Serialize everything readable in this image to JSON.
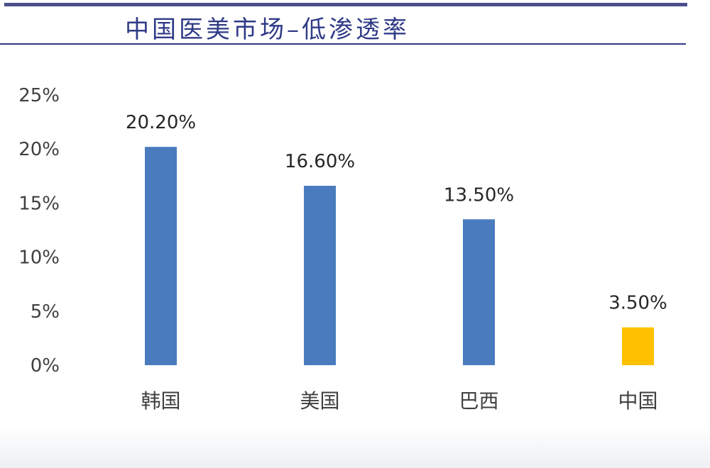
{
  "header": {
    "title": "中国医美市场–低渗透率"
  },
  "colors": {
    "bar_default": "#4a7bbf",
    "bar_highlight": "#ffc000",
    "title_text": "#2f3a86",
    "rule": "#4a4f8c"
  },
  "chart_data": {
    "type": "bar",
    "title": "",
    "xlabel": "",
    "ylabel": "",
    "categories": [
      "韩国",
      "美国",
      "巴西",
      "中国"
    ],
    "values": [
      20.2,
      16.6,
      13.5,
      3.5
    ],
    "data_labels": [
      "20.20%",
      "16.60%",
      "13.50%",
      "3.50%"
    ],
    "highlight_category": "中国",
    "ylim": [
      0,
      25
    ],
    "y_ticks": [
      0,
      5,
      10,
      15,
      20,
      25
    ],
    "y_tick_labels": [
      "0%",
      "5%",
      "10%",
      "15%",
      "20%",
      "25%"
    ],
    "grid": false,
    "legend": "none"
  }
}
